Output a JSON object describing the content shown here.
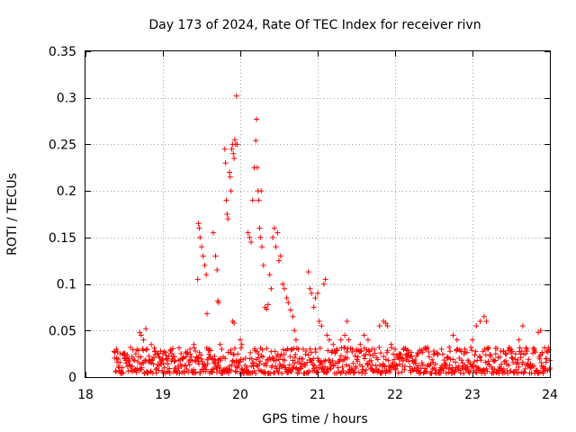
{
  "chart_data": {
    "type": "scatter",
    "title": "Day 173 of 2024, Rate Of TEC Index for receiver rivn",
    "xlabel": "GPS time / hours",
    "ylabel": "ROTI / TECUs",
    "xlim": [
      18,
      24
    ],
    "ylim": [
      0,
      0.35
    ],
    "xticks": [
      18,
      19,
      20,
      21,
      22,
      23,
      24
    ],
    "xtick_labels": [
      "18",
      "19",
      "20",
      "21",
      "22",
      "23",
      "24"
    ],
    "yticks": [
      0,
      0.05,
      0.1,
      0.15,
      0.2,
      0.25,
      0.3,
      0.35
    ],
    "ytick_labels": [
      "0",
      "0.05",
      "0.1",
      "0.15",
      "0.2",
      "0.25",
      "0.3",
      "0.35"
    ],
    "grid": true,
    "marker": "+",
    "color": "#ff0000",
    "series": [
      {
        "name": "ROTI",
        "points": [
          [
            18.4,
            0.03
          ],
          [
            18.45,
            0.025
          ],
          [
            18.5,
            0.02
          ],
          [
            18.55,
            0.018
          ],
          [
            18.6,
            0.022
          ],
          [
            18.65,
            0.025
          ],
          [
            18.7,
            0.048
          ],
          [
            18.72,
            0.045
          ],
          [
            18.75,
            0.04
          ],
          [
            18.78,
            0.052
          ],
          [
            18.8,
            0.03
          ],
          [
            18.85,
            0.035
          ],
          [
            18.9,
            0.028
          ],
          [
            18.95,
            0.022
          ],
          [
            19.0,
            0.025
          ],
          [
            19.05,
            0.02
          ],
          [
            19.1,
            0.028
          ],
          [
            19.15,
            0.022
          ],
          [
            19.2,
            0.018
          ],
          [
            19.25,
            0.02
          ],
          [
            19.3,
            0.022
          ],
          [
            19.35,
            0.03
          ],
          [
            19.4,
            0.035
          ],
          [
            19.42,
            0.028
          ],
          [
            19.45,
            0.105
          ],
          [
            19.46,
            0.165
          ],
          [
            19.47,
            0.16
          ],
          [
            19.48,
            0.15
          ],
          [
            19.5,
            0.14
          ],
          [
            19.52,
            0.13
          ],
          [
            19.54,
            0.12
          ],
          [
            19.56,
            0.11
          ],
          [
            19.57,
            0.068
          ],
          [
            19.6,
            0.03
          ],
          [
            19.63,
            0.02
          ],
          [
            19.65,
            0.155
          ],
          [
            19.68,
            0.13
          ],
          [
            19.7,
            0.115
          ],
          [
            19.71,
            0.082
          ],
          [
            19.72,
            0.08
          ],
          [
            19.74,
            0.035
          ],
          [
            19.76,
            0.03
          ],
          [
            19.8,
            0.245
          ],
          [
            19.81,
            0.23
          ],
          [
            19.82,
            0.19
          ],
          [
            19.83,
            0.175
          ],
          [
            19.84,
            0.17
          ],
          [
            19.86,
            0.22
          ],
          [
            19.87,
            0.215
          ],
          [
            19.88,
            0.2
          ],
          [
            19.89,
            0.245
          ],
          [
            19.9,
            0.25
          ],
          [
            19.91,
            0.24
          ],
          [
            19.92,
            0.235
          ],
          [
            19.93,
            0.255
          ],
          [
            19.94,
            0.25
          ],
          [
            19.95,
            0.302
          ],
          [
            19.96,
            0.25
          ],
          [
            19.9,
            0.06
          ],
          [
            19.92,
            0.058
          ],
          [
            20.0,
            0.04
          ],
          [
            20.02,
            0.035
          ],
          [
            20.1,
            0.155
          ],
          [
            20.12,
            0.15
          ],
          [
            20.14,
            0.145
          ],
          [
            20.16,
            0.19
          ],
          [
            20.18,
            0.225
          ],
          [
            20.2,
            0.254
          ],
          [
            20.21,
            0.277
          ],
          [
            20.22,
            0.225
          ],
          [
            20.23,
            0.2
          ],
          [
            20.24,
            0.19
          ],
          [
            20.25,
            0.16
          ],
          [
            20.26,
            0.15
          ],
          [
            20.27,
            0.2
          ],
          [
            20.28,
            0.14
          ],
          [
            20.3,
            0.12
          ],
          [
            20.32,
            0.075
          ],
          [
            20.34,
            0.073
          ],
          [
            20.36,
            0.078
          ],
          [
            20.38,
            0.11
          ],
          [
            20.4,
            0.095
          ],
          [
            20.42,
            0.15
          ],
          [
            20.44,
            0.16
          ],
          [
            20.46,
            0.14
          ],
          [
            20.48,
            0.155
          ],
          [
            20.5,
            0.125
          ],
          [
            20.52,
            0.13
          ],
          [
            20.55,
            0.1
          ],
          [
            20.57,
            0.095
          ],
          [
            20.6,
            0.085
          ],
          [
            20.62,
            0.08
          ],
          [
            20.65,
            0.072
          ],
          [
            20.68,
            0.065
          ],
          [
            20.7,
            0.05
          ],
          [
            20.72,
            0.04
          ],
          [
            20.75,
            0.03
          ],
          [
            20.88,
            0.113
          ],
          [
            20.9,
            0.095
          ],
          [
            20.92,
            0.09
          ],
          [
            20.95,
            0.075
          ],
          [
            20.97,
            0.085
          ],
          [
            21.0,
            0.09
          ],
          [
            21.02,
            0.06
          ],
          [
            21.05,
            0.055
          ],
          [
            21.08,
            0.1
          ],
          [
            21.1,
            0.105
          ],
          [
            21.12,
            0.045
          ],
          [
            21.15,
            0.04
          ],
          [
            21.2,
            0.035
          ],
          [
            21.25,
            0.03
          ],
          [
            21.3,
            0.04
          ],
          [
            21.35,
            0.045
          ],
          [
            21.38,
            0.06
          ],
          [
            21.4,
            0.04
          ],
          [
            21.45,
            0.03
          ],
          [
            21.5,
            0.028
          ],
          [
            21.55,
            0.035
          ],
          [
            21.6,
            0.045
          ],
          [
            21.65,
            0.04
          ],
          [
            21.7,
            0.03
          ],
          [
            21.8,
            0.055
          ],
          [
            21.85,
            0.06
          ],
          [
            21.88,
            0.058
          ],
          [
            21.9,
            0.055
          ],
          [
            21.95,
            0.035
          ],
          [
            22.0,
            0.03
          ],
          [
            22.05,
            0.025
          ],
          [
            22.1,
            0.02
          ],
          [
            22.15,
            0.025
          ],
          [
            22.2,
            0.022
          ],
          [
            22.3,
            0.025
          ],
          [
            22.4,
            0.03
          ],
          [
            22.5,
            0.028
          ],
          [
            22.6,
            0.03
          ],
          [
            22.7,
            0.032
          ],
          [
            22.75,
            0.045
          ],
          [
            22.8,
            0.04
          ],
          [
            22.9,
            0.03
          ],
          [
            23.0,
            0.04
          ],
          [
            23.05,
            0.055
          ],
          [
            23.1,
            0.06
          ],
          [
            23.15,
            0.065
          ],
          [
            23.18,
            0.06
          ],
          [
            23.2,
            0.03
          ],
          [
            23.3,
            0.025
          ],
          [
            23.4,
            0.028
          ],
          [
            23.5,
            0.03
          ],
          [
            23.6,
            0.04
          ],
          [
            23.65,
            0.055
          ],
          [
            23.7,
            0.03
          ],
          [
            23.8,
            0.03
          ],
          [
            23.85,
            0.048
          ],
          [
            23.88,
            0.05
          ],
          [
            23.9,
            0.025
          ],
          [
            23.95,
            0.02
          ],
          [
            24.0,
            0.018
          ]
        ],
        "baseline": {
          "x_start": 18.37,
          "x_end": 24.0,
          "count": 900,
          "y_min": 0.004,
          "y_max": 0.032
        }
      }
    ]
  }
}
